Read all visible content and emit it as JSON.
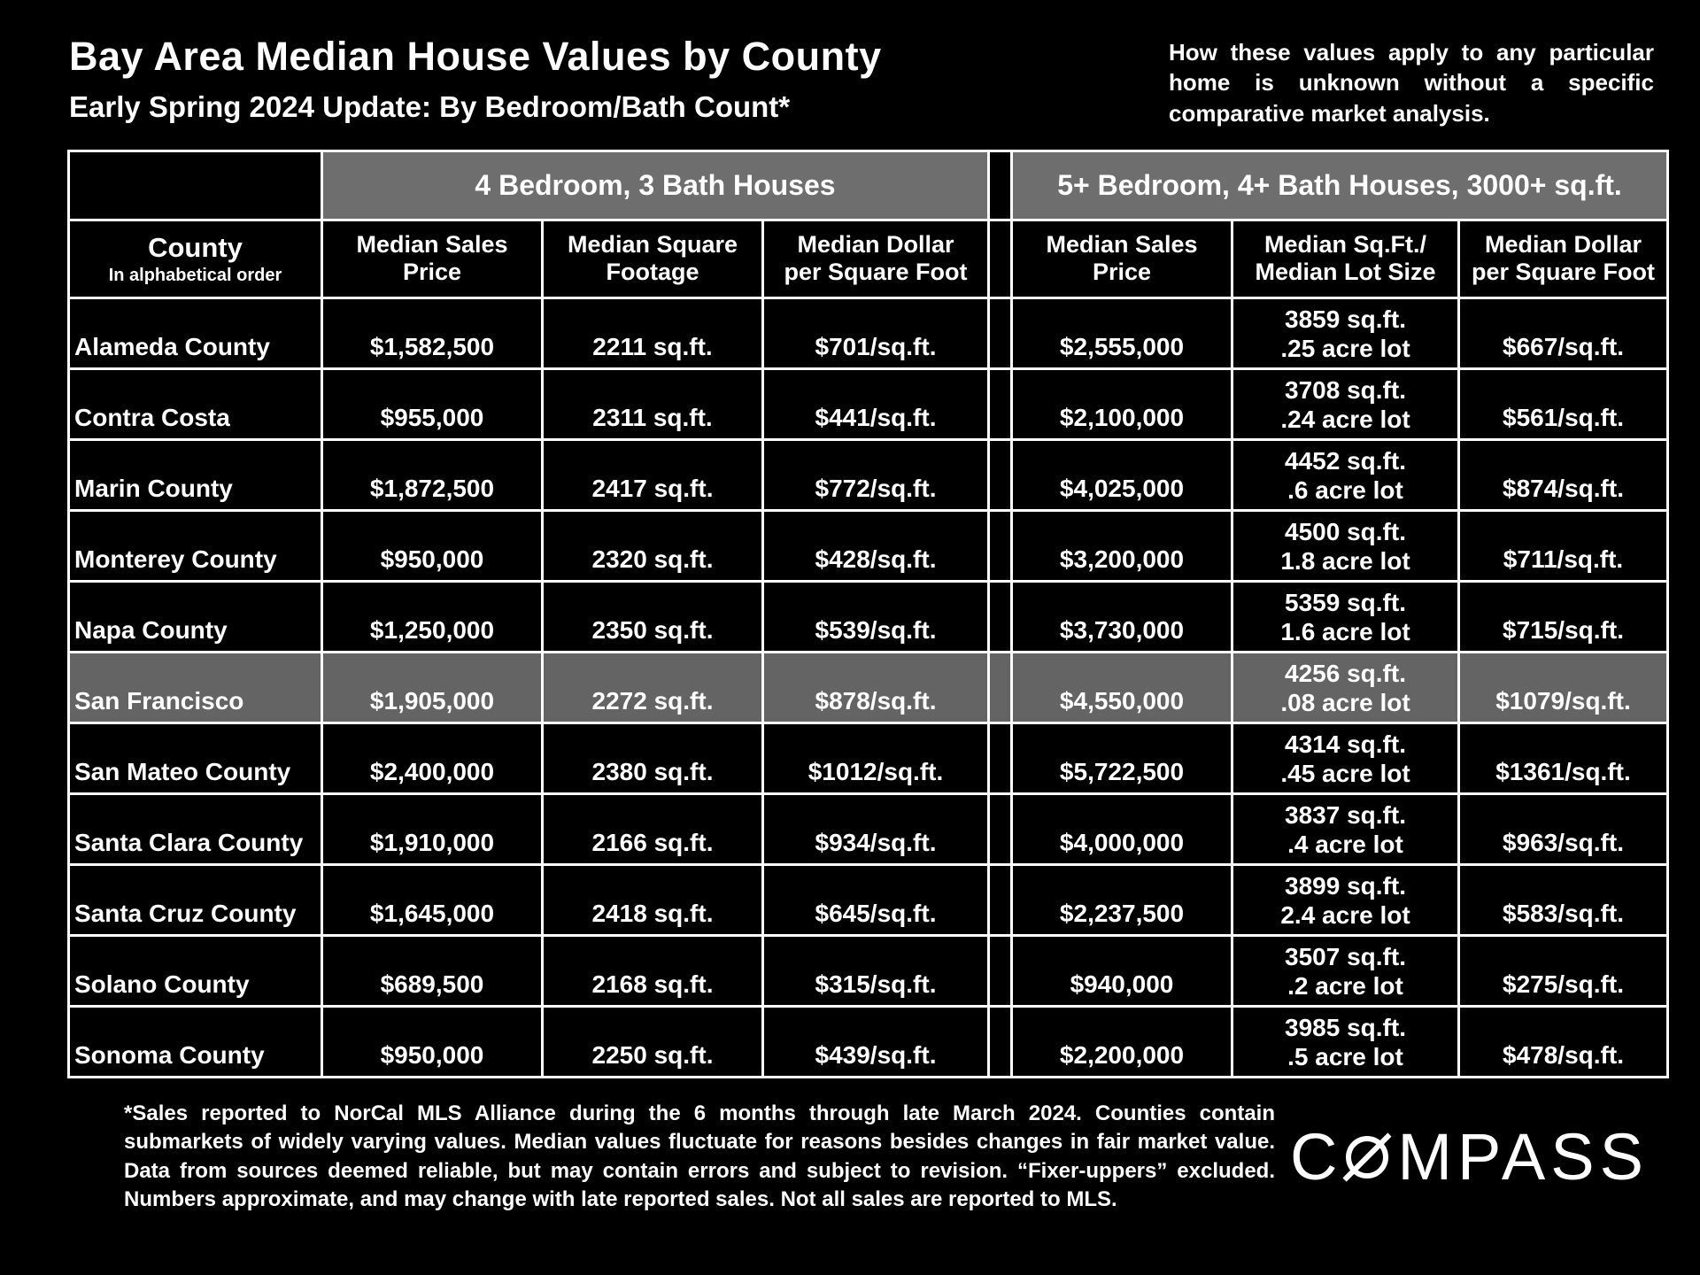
{
  "page": {
    "title": "Bay Area Median House Values by County",
    "subtitle": "Early Spring 2024 Update:  By Bedroom/Bath Count*",
    "note": "How these values apply to any particular home is unknown without a specific comparative market analysis."
  },
  "colors": {
    "background": "#000000",
    "text": "#ffffff",
    "border": "#ffffff",
    "group_header_bg": "#6e6e6e",
    "highlight_row_bg": "#646464"
  },
  "table_ui": {
    "group1_label": "4 Bedroom, 3 Bath Houses",
    "group2_label": "5+ Bedroom, 4+ Bath Houses, 3000+ sq.ft.",
    "county_header": "County",
    "county_subheader": "In alphabetical order",
    "headers": {
      "g1": [
        {
          "l1": "Median Sales",
          "l2": "Price"
        },
        {
          "l1": "Median Square",
          "l2": "Footage"
        },
        {
          "l1": "Median Dollar",
          "l2": "per Square Foot"
        }
      ],
      "g2": [
        {
          "l1": "Median Sales",
          "l2": "Price"
        },
        {
          "l1": "Median Sq.Ft./",
          "l2": "Median Lot Size"
        },
        {
          "l1": "Median Dollar",
          "l2": "per Square Foot"
        }
      ]
    }
  },
  "chart_data": {
    "type": "table",
    "title": "Bay Area Median House Values by County — Early Spring 2024 Update: By Bedroom/Bath Count",
    "column_groups": [
      "4 Bedroom, 3 Bath Houses",
      "5+ Bedroom, 4+ Bath Houses, 3000+ sq.ft."
    ],
    "columns": [
      "County (in alphabetical order)",
      "Median Sales Price (4bd/3ba)",
      "Median Square Footage (4bd/3ba)",
      "Median Dollar per Square Foot (4bd/3ba)",
      "Median Sales Price (5+bd/4+ba)",
      "Median Sq.Ft. / Median Lot Size (5+bd/4+ba)",
      "Median Dollar per Square Foot (5+bd/4+ba)"
    ],
    "highlighted_row": "San Francisco",
    "rows": [
      {
        "county": "Alameda County",
        "g1_price": "$1,582,500",
        "g1_sqft": "2211 sq.ft.",
        "g1_ppsf": "$701/sq.ft.",
        "g2_price": "$2,555,000",
        "g2_sqft": "3859 sq.ft.",
        "g2_lot": ".25 acre lot",
        "g2_ppsf": "$667/sq.ft.",
        "highlight": false
      },
      {
        "county": "Contra Costa",
        "g1_price": "$955,000",
        "g1_sqft": "2311 sq.ft.",
        "g1_ppsf": "$441/sq.ft.",
        "g2_price": "$2,100,000",
        "g2_sqft": "3708 sq.ft.",
        "g2_lot": ".24 acre lot",
        "g2_ppsf": "$561/sq.ft.",
        "highlight": false
      },
      {
        "county": "Marin County",
        "g1_price": "$1,872,500",
        "g1_sqft": "2417 sq.ft.",
        "g1_ppsf": "$772/sq.ft.",
        "g2_price": "$4,025,000",
        "g2_sqft": "4452 sq.ft.",
        "g2_lot": ".6 acre lot",
        "g2_ppsf": "$874/sq.ft.",
        "highlight": false
      },
      {
        "county": "Monterey County",
        "g1_price": "$950,000",
        "g1_sqft": "2320 sq.ft.",
        "g1_ppsf": "$428/sq.ft.",
        "g2_price": "$3,200,000",
        "g2_sqft": "4500 sq.ft.",
        "g2_lot": "1.8 acre lot",
        "g2_ppsf": "$711/sq.ft.",
        "highlight": false
      },
      {
        "county": "Napa County",
        "g1_price": "$1,250,000",
        "g1_sqft": "2350 sq.ft.",
        "g1_ppsf": "$539/sq.ft.",
        "g2_price": "$3,730,000",
        "g2_sqft": "5359 sq.ft.",
        "g2_lot": "1.6 acre lot",
        "g2_ppsf": "$715/sq.ft.",
        "highlight": false
      },
      {
        "county": "San Francisco",
        "g1_price": "$1,905,000",
        "g1_sqft": "2272 sq.ft.",
        "g1_ppsf": "$878/sq.ft.",
        "g2_price": "$4,550,000",
        "g2_sqft": "4256 sq.ft.",
        "g2_lot": ".08 acre lot",
        "g2_ppsf": "$1079/sq.ft.",
        "highlight": true
      },
      {
        "county": "San Mateo County",
        "g1_price": "$2,400,000",
        "g1_sqft": "2380 sq.ft.",
        "g1_ppsf": "$1012/sq.ft.",
        "g2_price": "$5,722,500",
        "g2_sqft": "4314 sq.ft.",
        "g2_lot": ".45 acre lot",
        "g2_ppsf": "$1361/sq.ft.",
        "highlight": false
      },
      {
        "county": "Santa Clara County",
        "g1_price": "$1,910,000",
        "g1_sqft": "2166 sq.ft.",
        "g1_ppsf": "$934/sq.ft.",
        "g2_price": "$4,000,000",
        "g2_sqft": "3837 sq.ft.",
        "g2_lot": ".4 acre lot",
        "g2_ppsf": "$963/sq.ft.",
        "highlight": false
      },
      {
        "county": "Santa Cruz County",
        "g1_price": "$1,645,000",
        "g1_sqft": "2418 sq.ft.",
        "g1_ppsf": "$645/sq.ft.",
        "g2_price": "$2,237,500",
        "g2_sqft": "3899 sq.ft.",
        "g2_lot": "2.4 acre lot",
        "g2_ppsf": "$583/sq.ft.",
        "highlight": false
      },
      {
        "county": "Solano County",
        "g1_price": "$689,500",
        "g1_sqft": "2168 sq.ft.",
        "g1_ppsf": "$315/sq.ft.",
        "g2_price": "$940,000",
        "g2_sqft": "3507 sq.ft.",
        "g2_lot": ".2 acre lot",
        "g2_ppsf": "$275/sq.ft.",
        "highlight": false
      },
      {
        "county": "Sonoma County",
        "g1_price": "$950,000",
        "g1_sqft": "2250 sq.ft.",
        "g1_ppsf": "$439/sq.ft.",
        "g2_price": "$2,200,000",
        "g2_sqft": "3985 sq.ft.",
        "g2_lot": ".5 acre lot",
        "g2_ppsf": "$478/sq.ft.",
        "highlight": false
      }
    ]
  },
  "footer": {
    "footnote": "*Sales reported to NorCal MLS Alliance during the 6 months through late March 2024. Counties contain submarkets of widely varying values. Median values fluctuate for reasons besides changes in fair market value. Data from sources deemed reliable, but may contain errors and subject to revision.  “Fixer-uppers” excluded. Numbers approximate, and may change with late reported sales. Not all sales are reported to MLS.",
    "logo_c": "C",
    "logo_rest": "MPASS",
    "logo_name": "COMPASS"
  }
}
